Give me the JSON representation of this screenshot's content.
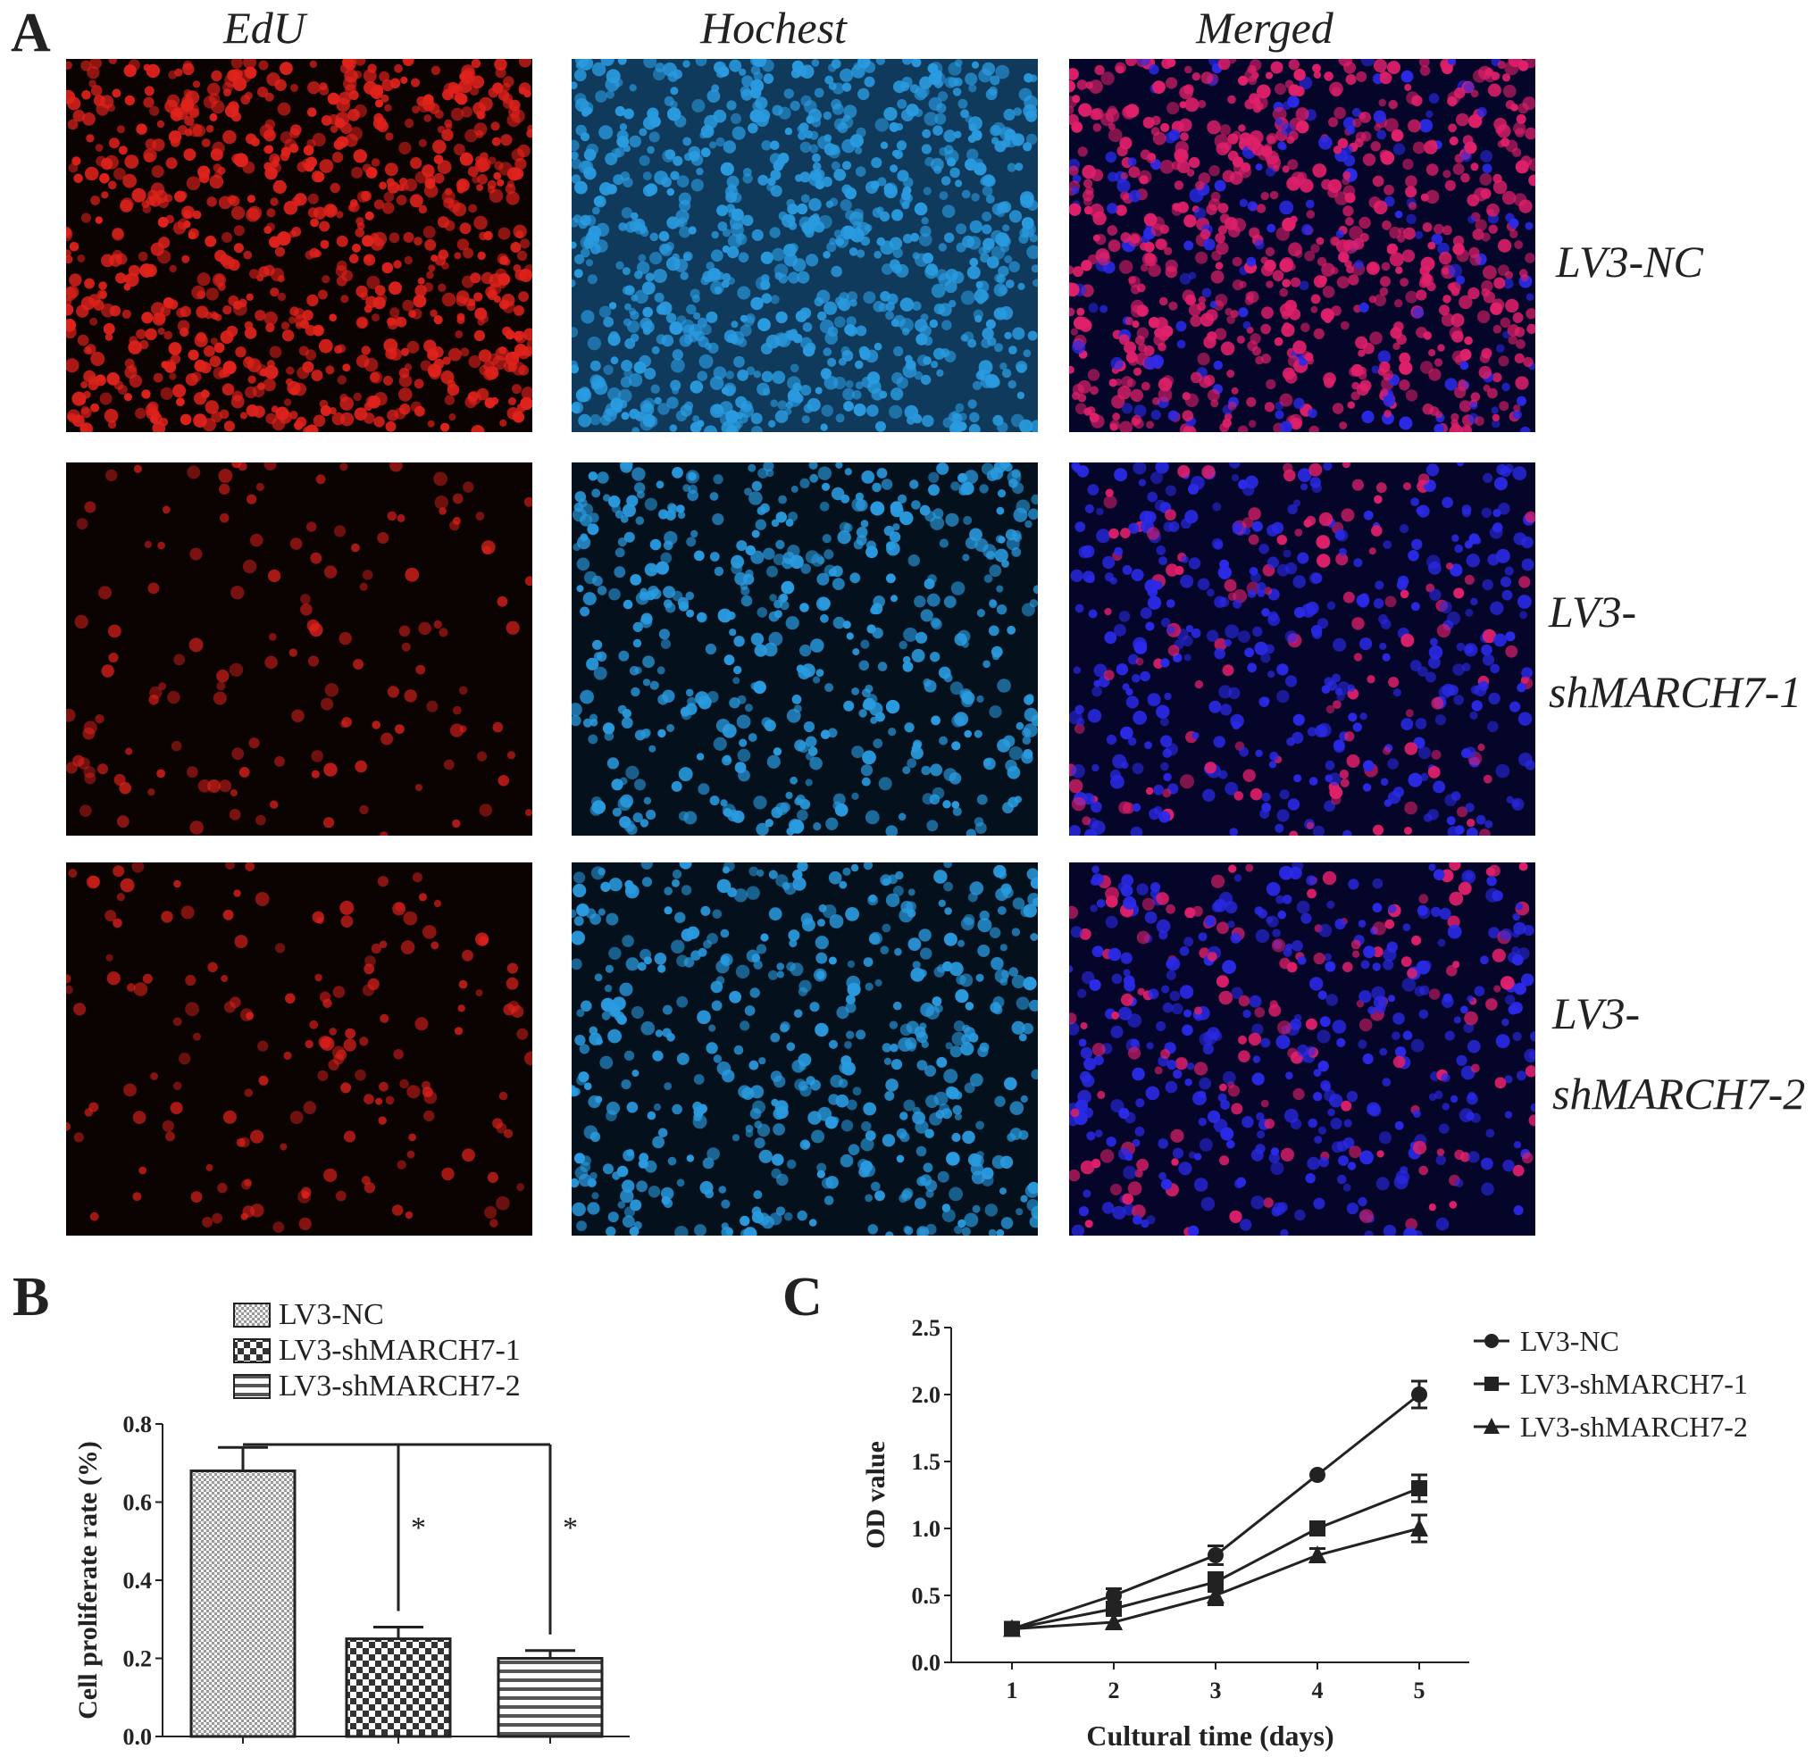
{
  "panel_a": {
    "letter": "A",
    "columns": [
      "EdU",
      "Hochest",
      "Merged"
    ],
    "rows": [
      {
        "label_lines": [
          "LV3-NC"
        ],
        "edu_density": 0.95,
        "merged_pink": 0.8
      },
      {
        "label_lines": [
          "LV3-",
          "shMARCH7-1"
        ],
        "edu_density": 0.25,
        "merged_pink": 0.25
      },
      {
        "label_lines": [
          "LV3-",
          "shMARCH7-2"
        ],
        "edu_density": 0.3,
        "merged_pink": 0.25
      }
    ],
    "colors": {
      "edu": "#e0221c",
      "hoechst": "#2a9be0",
      "merged_blue": "#2a2ae8",
      "merged_pink": "#e0206a"
    }
  },
  "panel_b": {
    "letter": "B",
    "legend": [
      "LV3-NC",
      "LV3-shMARCH7-1",
      "LV3-shMARCH7-2"
    ],
    "significance": [
      "*",
      "*"
    ]
  },
  "panel_c": {
    "letter": "C",
    "legend": [
      "LV3-NC",
      "LV3-shMARCH7-1",
      "LV3-shMARCH7-2"
    ]
  },
  "chart_data": [
    {
      "type": "bar",
      "categories": [
        "LV3-NC",
        "LV3-shMARCH7-1",
        "LV3-shMARCH7-2"
      ],
      "values": [
        0.68,
        0.25,
        0.2
      ],
      "errors": [
        0.06,
        0.03,
        0.02
      ],
      "patterns": [
        "dense-check",
        "coarse-check",
        "horizontal-lines"
      ],
      "xlabel": "",
      "ylabel": "Cell proliferate rate (%)",
      "ylim": [
        0,
        0.8
      ],
      "yticks": [
        "0.0",
        "0.2",
        "0.4",
        "0.6",
        "0.8"
      ],
      "annotations": [
        "*",
        "*"
      ]
    },
    {
      "type": "line",
      "x": [
        1,
        2,
        3,
        4,
        5
      ],
      "series": [
        {
          "name": "LV3-NC",
          "marker": "circle",
          "values": [
            0.25,
            0.5,
            0.8,
            1.4,
            2.0
          ],
          "errors": [
            0.02,
            0.05,
            0.07,
            0.03,
            0.1
          ]
        },
        {
          "name": "LV3-shMARCH7-1",
          "marker": "square",
          "values": [
            0.25,
            0.4,
            0.6,
            1.0,
            1.3
          ],
          "errors": [
            0.02,
            0.05,
            0.07,
            0.03,
            0.1
          ]
        },
        {
          "name": "LV3-shMARCH7-2",
          "marker": "triangle",
          "values": [
            0.25,
            0.3,
            0.5,
            0.8,
            1.0
          ],
          "errors": [
            0.02,
            0.05,
            0.07,
            0.05,
            0.1
          ]
        }
      ],
      "xlabel": "Cultural time (days)",
      "ylabel": "OD value",
      "ylim": [
        0,
        2.5
      ],
      "xticks": [
        "1",
        "2",
        "3",
        "4",
        "5"
      ],
      "yticks": [
        "0.0",
        "0.5",
        "1.0",
        "1.5",
        "2.0",
        "2.5"
      ]
    }
  ]
}
